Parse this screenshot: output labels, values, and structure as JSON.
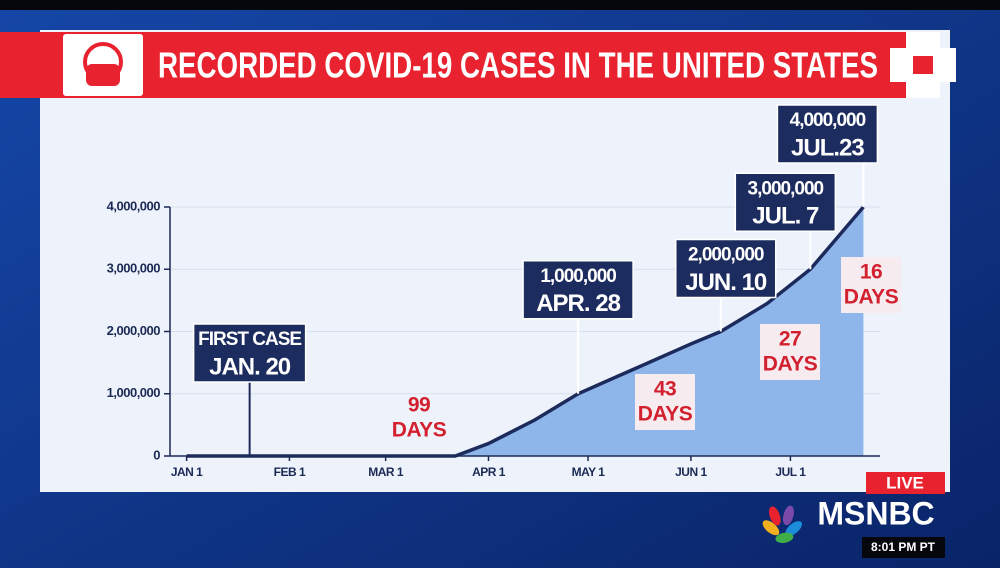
{
  "chart_data": {
    "type": "area",
    "title": "RECORDED COVID-19 CASES IN THE UNITED STATES",
    "x": [
      0,
      31,
      60,
      75,
      81,
      91,
      105,
      118,
      135,
      152,
      161,
      175,
      188,
      196,
      204
    ],
    "series": [
      {
        "name": "Cases",
        "color": "#1c2a5c",
        "fill": "#8fb6ea",
        "values": [
          0,
          0,
          0,
          0,
          0,
          200000,
          580000,
          1000000,
          1400000,
          1800000,
          2000000,
          2450000,
          3000000,
          3500000,
          4000000
        ]
      }
    ],
    "xlim": [
      -5,
      209
    ],
    "xticks": [
      {
        "value": 0,
        "label": "JAN 1"
      },
      {
        "value": 31,
        "label": "FEB 1"
      },
      {
        "value": 60,
        "label": "MAR 1"
      },
      {
        "value": 91,
        "label": "APR 1"
      },
      {
        "value": 121,
        "label": "MAY 1"
      },
      {
        "value": 152,
        "label": "JUN 1"
      },
      {
        "value": 182,
        "label": "JUL 1"
      }
    ],
    "ylim": [
      0,
      4000000
    ],
    "yticks": [
      0,
      {
        "value": 1000000,
        "label": "1,000,000"
      },
      {
        "value": 2000000,
        "label": "2,000,000"
      },
      {
        "value": 3000000,
        "label": "3,000,000"
      },
      {
        "value": 4000000,
        "label": "4,000,000"
      }
    ],
    "annotations": [
      {
        "x": 19,
        "y": 0,
        "lines": [
          "FIRST CASE",
          "JAN. 20"
        ]
      },
      {
        "x": 118,
        "y": 1000000,
        "lines": [
          "1,000,000",
          "APR. 28"
        ]
      },
      {
        "x": 161,
        "y": 2000000,
        "lines": [
          "2,000,000",
          "JUN. 10"
        ]
      },
      {
        "x": 188,
        "y": 3000000,
        "lines": [
          "3,000,000",
          "JUL. 7"
        ]
      },
      {
        "x": 204,
        "y": 4000000,
        "lines": [
          "4,000,000",
          "JUL.23"
        ]
      }
    ],
    "intervals": [
      [
        "99",
        "DAYS"
      ],
      [
        "43",
        "DAYS"
      ],
      [
        "27",
        "DAYS"
      ],
      [
        "16",
        "DAYS"
      ]
    ]
  },
  "broadcast": {
    "live": "LIVE",
    "network": "MSNBC",
    "time": "8:01 PM PT"
  }
}
